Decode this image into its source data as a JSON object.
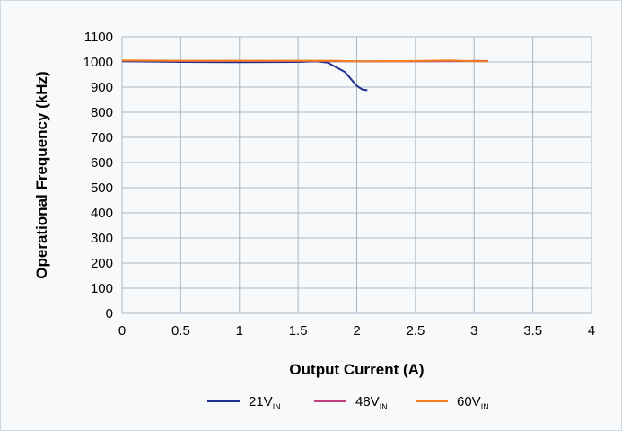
{
  "chart_data": {
    "type": "line",
    "xlabel": "Output Current (A)",
    "ylabel": "Operational Frequency (kHz)",
    "xlim": [
      0,
      4
    ],
    "ylim": [
      0,
      1100
    ],
    "x_ticks": [
      "0",
      "0.5",
      "1",
      "1.5",
      "2",
      "2.5",
      "3",
      "3.5",
      "4"
    ],
    "y_ticks": [
      "0",
      "100",
      "200",
      "300",
      "400",
      "500",
      "600",
      "700",
      "800",
      "900",
      "1000",
      "1100"
    ],
    "grid": true,
    "legend_position": "bottom",
    "series": [
      {
        "name": "21V",
        "name_sub": "IN",
        "color": "#1f2f8f",
        "points": [
          [
            0,
            1003
          ],
          [
            0.5,
            1000
          ],
          [
            1.0,
            999
          ],
          [
            1.5,
            1000
          ],
          [
            1.65,
            1003
          ],
          [
            1.75,
            998
          ],
          [
            1.9,
            960
          ],
          [
            2.0,
            905
          ],
          [
            2.05,
            890
          ],
          [
            2.09,
            888
          ]
        ]
      },
      {
        "name": "48V",
        "name_sub": "IN",
        "color": "#c0407f",
        "points": [
          [
            0,
            1005
          ],
          [
            0.5,
            1004
          ],
          [
            1.0,
            1004
          ],
          [
            1.5,
            1004
          ],
          [
            2.0,
            1003
          ],
          [
            2.5,
            1003
          ],
          [
            3.0,
            1004
          ],
          [
            3.12,
            1004
          ]
        ]
      },
      {
        "name": "60V",
        "name_sub": "IN",
        "color": "#f07f1c",
        "points": [
          [
            0,
            1006
          ],
          [
            0.5,
            1005
          ],
          [
            1.0,
            1005
          ],
          [
            1.5,
            1005
          ],
          [
            1.8,
            1005
          ],
          [
            2.0,
            1002
          ],
          [
            2.5,
            1004
          ],
          [
            2.8,
            1006
          ],
          [
            3.0,
            1003
          ],
          [
            3.12,
            1003
          ]
        ]
      }
    ]
  }
}
